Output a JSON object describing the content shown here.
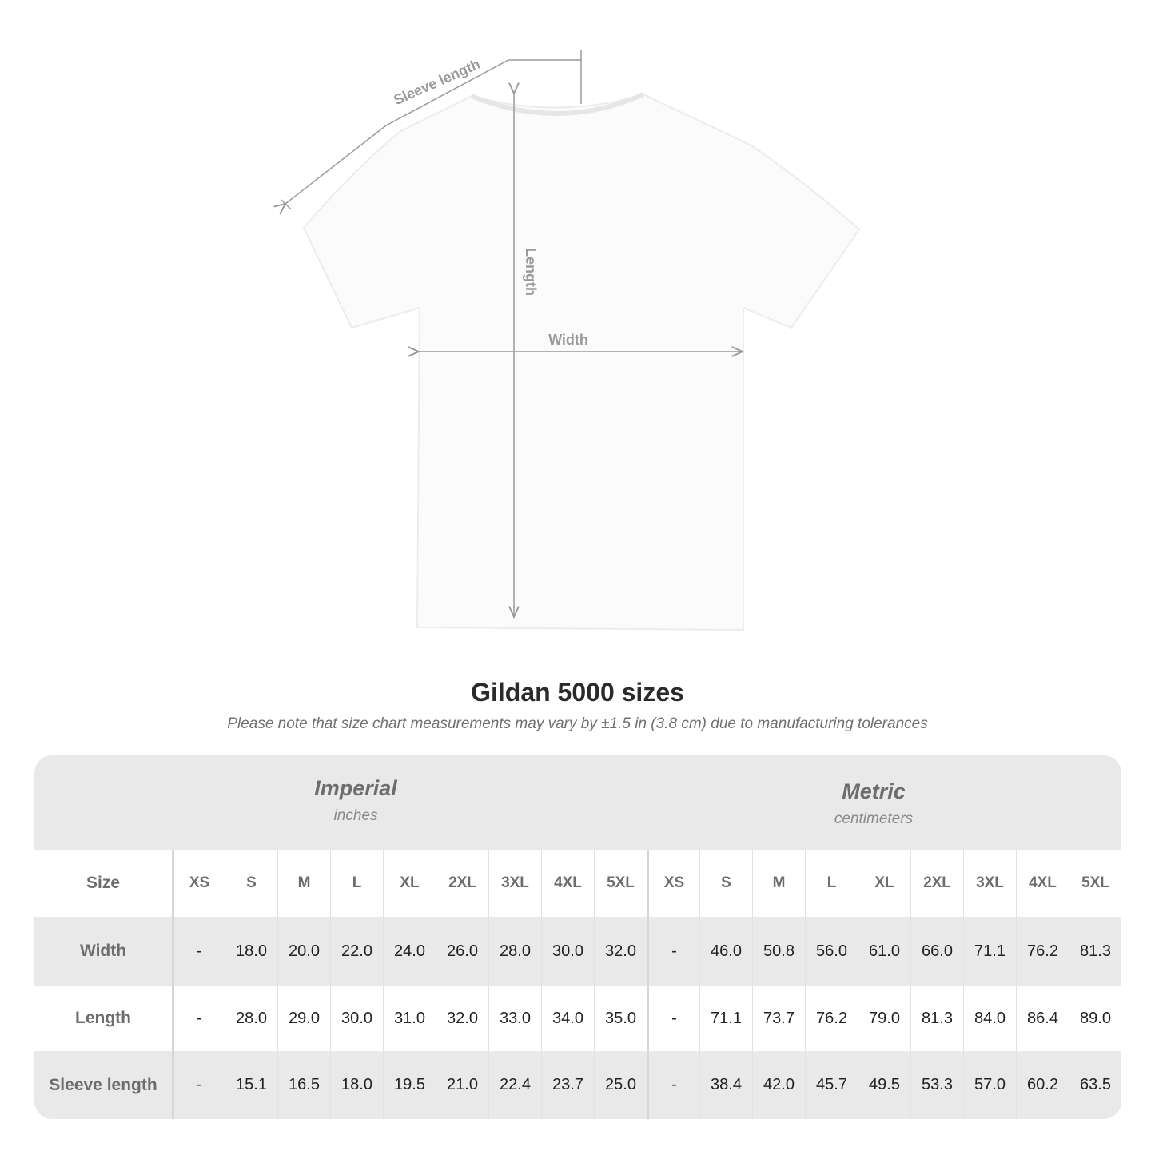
{
  "diagram": {
    "labels": {
      "sleeve": "Sleeve length",
      "length": "Length",
      "width": "Width"
    }
  },
  "title": "Gildan 5000 sizes",
  "note": "Please note that size chart measurements may vary by ±1.5 in (3.8 cm) due to manufacturing tolerances",
  "table": {
    "imperial": {
      "name": "Imperial",
      "unit": "inches"
    },
    "metric": {
      "name": "Metric",
      "unit": "centimeters"
    },
    "size_label": "Size",
    "sizes": [
      "XS",
      "S",
      "M",
      "L",
      "XL",
      "2XL",
      "3XL",
      "4XL",
      "5XL"
    ],
    "rows": [
      {
        "label": "Width",
        "imperial": [
          "-",
          "18.0",
          "20.0",
          "22.0",
          "24.0",
          "26.0",
          "28.0",
          "30.0",
          "32.0"
        ],
        "metric": [
          "-",
          "46.0",
          "50.8",
          "56.0",
          "61.0",
          "66.0",
          "71.1",
          "76.2",
          "81.3"
        ]
      },
      {
        "label": "Length",
        "imperial": [
          "-",
          "28.0",
          "29.0",
          "30.0",
          "31.0",
          "32.0",
          "33.0",
          "34.0",
          "35.0"
        ],
        "metric": [
          "-",
          "71.1",
          "73.7",
          "76.2",
          "79.0",
          "81.3",
          "84.0",
          "86.4",
          "89.0"
        ]
      },
      {
        "label": "Sleeve length",
        "imperial": [
          "-",
          "15.1",
          "16.5",
          "18.0",
          "19.5",
          "21.0",
          "22.4",
          "23.7",
          "25.0"
        ],
        "metric": [
          "-",
          "38.4",
          "42.0",
          "45.7",
          "49.5",
          "53.3",
          "57.0",
          "60.2",
          "63.5"
        ]
      }
    ]
  },
  "colors": {
    "band": "#e9e9e9",
    "header_text": "#6d6d6d",
    "annotation": "#9a9a9a"
  }
}
